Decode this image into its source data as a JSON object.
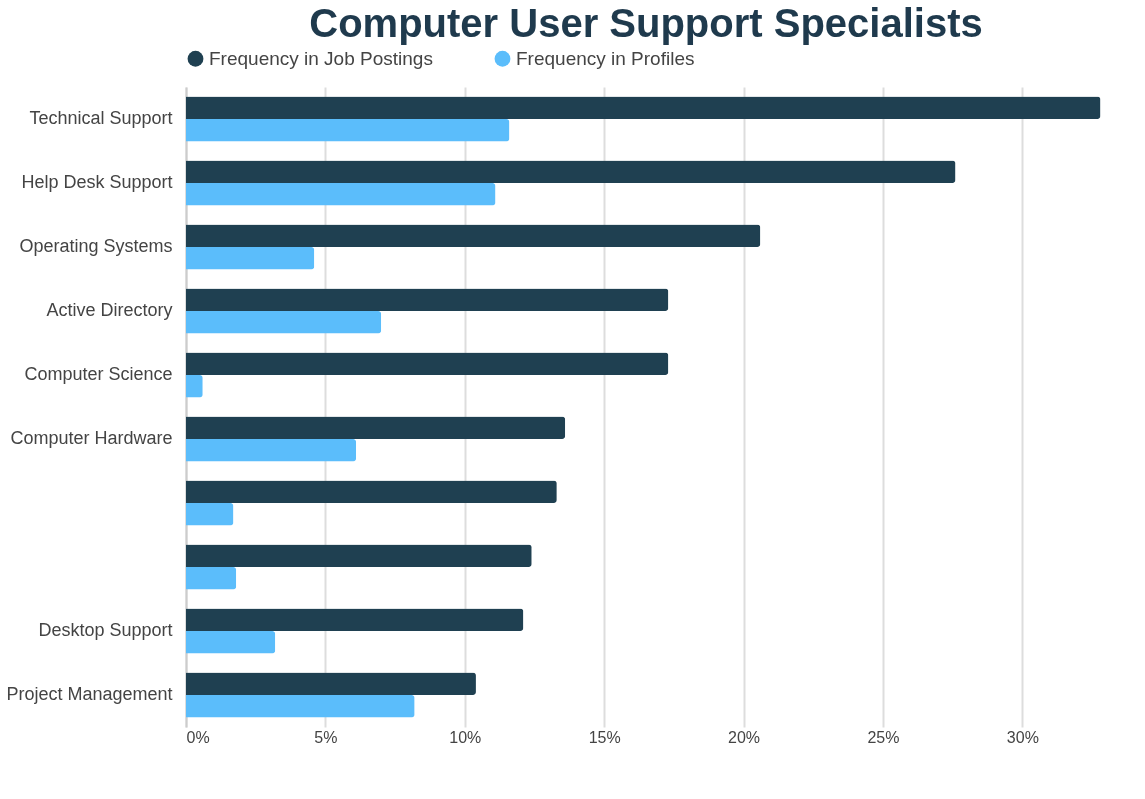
{
  "chart_data": {
    "type": "bar",
    "orientation": "horizontal",
    "title": "Computer User Support Specialists",
    "categories": [
      "Technical Support",
      "Help Desk Support",
      "Operating Systems",
      "Active Directory",
      "Computer Science",
      "Computer Hardware",
      null,
      null,
      "Desktop Support",
      "Project Management"
    ],
    "series": [
      {
        "name": "Frequency in Job Postings",
        "color": "#1f4051",
        "values": [
          32.8,
          27.6,
          20.6,
          17.3,
          17.3,
          13.6,
          13.3,
          12.4,
          12.1,
          10.4
        ]
      },
      {
        "name": "Frequency in Profiles",
        "color": "#5bbdfb",
        "values": [
          11.6,
          11.1,
          4.6,
          7.0,
          0.6,
          6.1,
          1.7,
          1.8,
          3.2,
          8.2
        ]
      }
    ],
    "xlim": [
      0,
      33
    ],
    "xticks": [
      {
        "value": 0,
        "label": "0%"
      },
      {
        "value": 5,
        "label": "5%"
      },
      {
        "value": 10,
        "label": "10%"
      },
      {
        "value": 15,
        "label": "15%"
      },
      {
        "value": 20,
        "label": "20%"
      },
      {
        "value": 25,
        "label": "25%"
      },
      {
        "value": 30,
        "label": "30%"
      }
    ],
    "grid": "x",
    "legend": "top"
  }
}
